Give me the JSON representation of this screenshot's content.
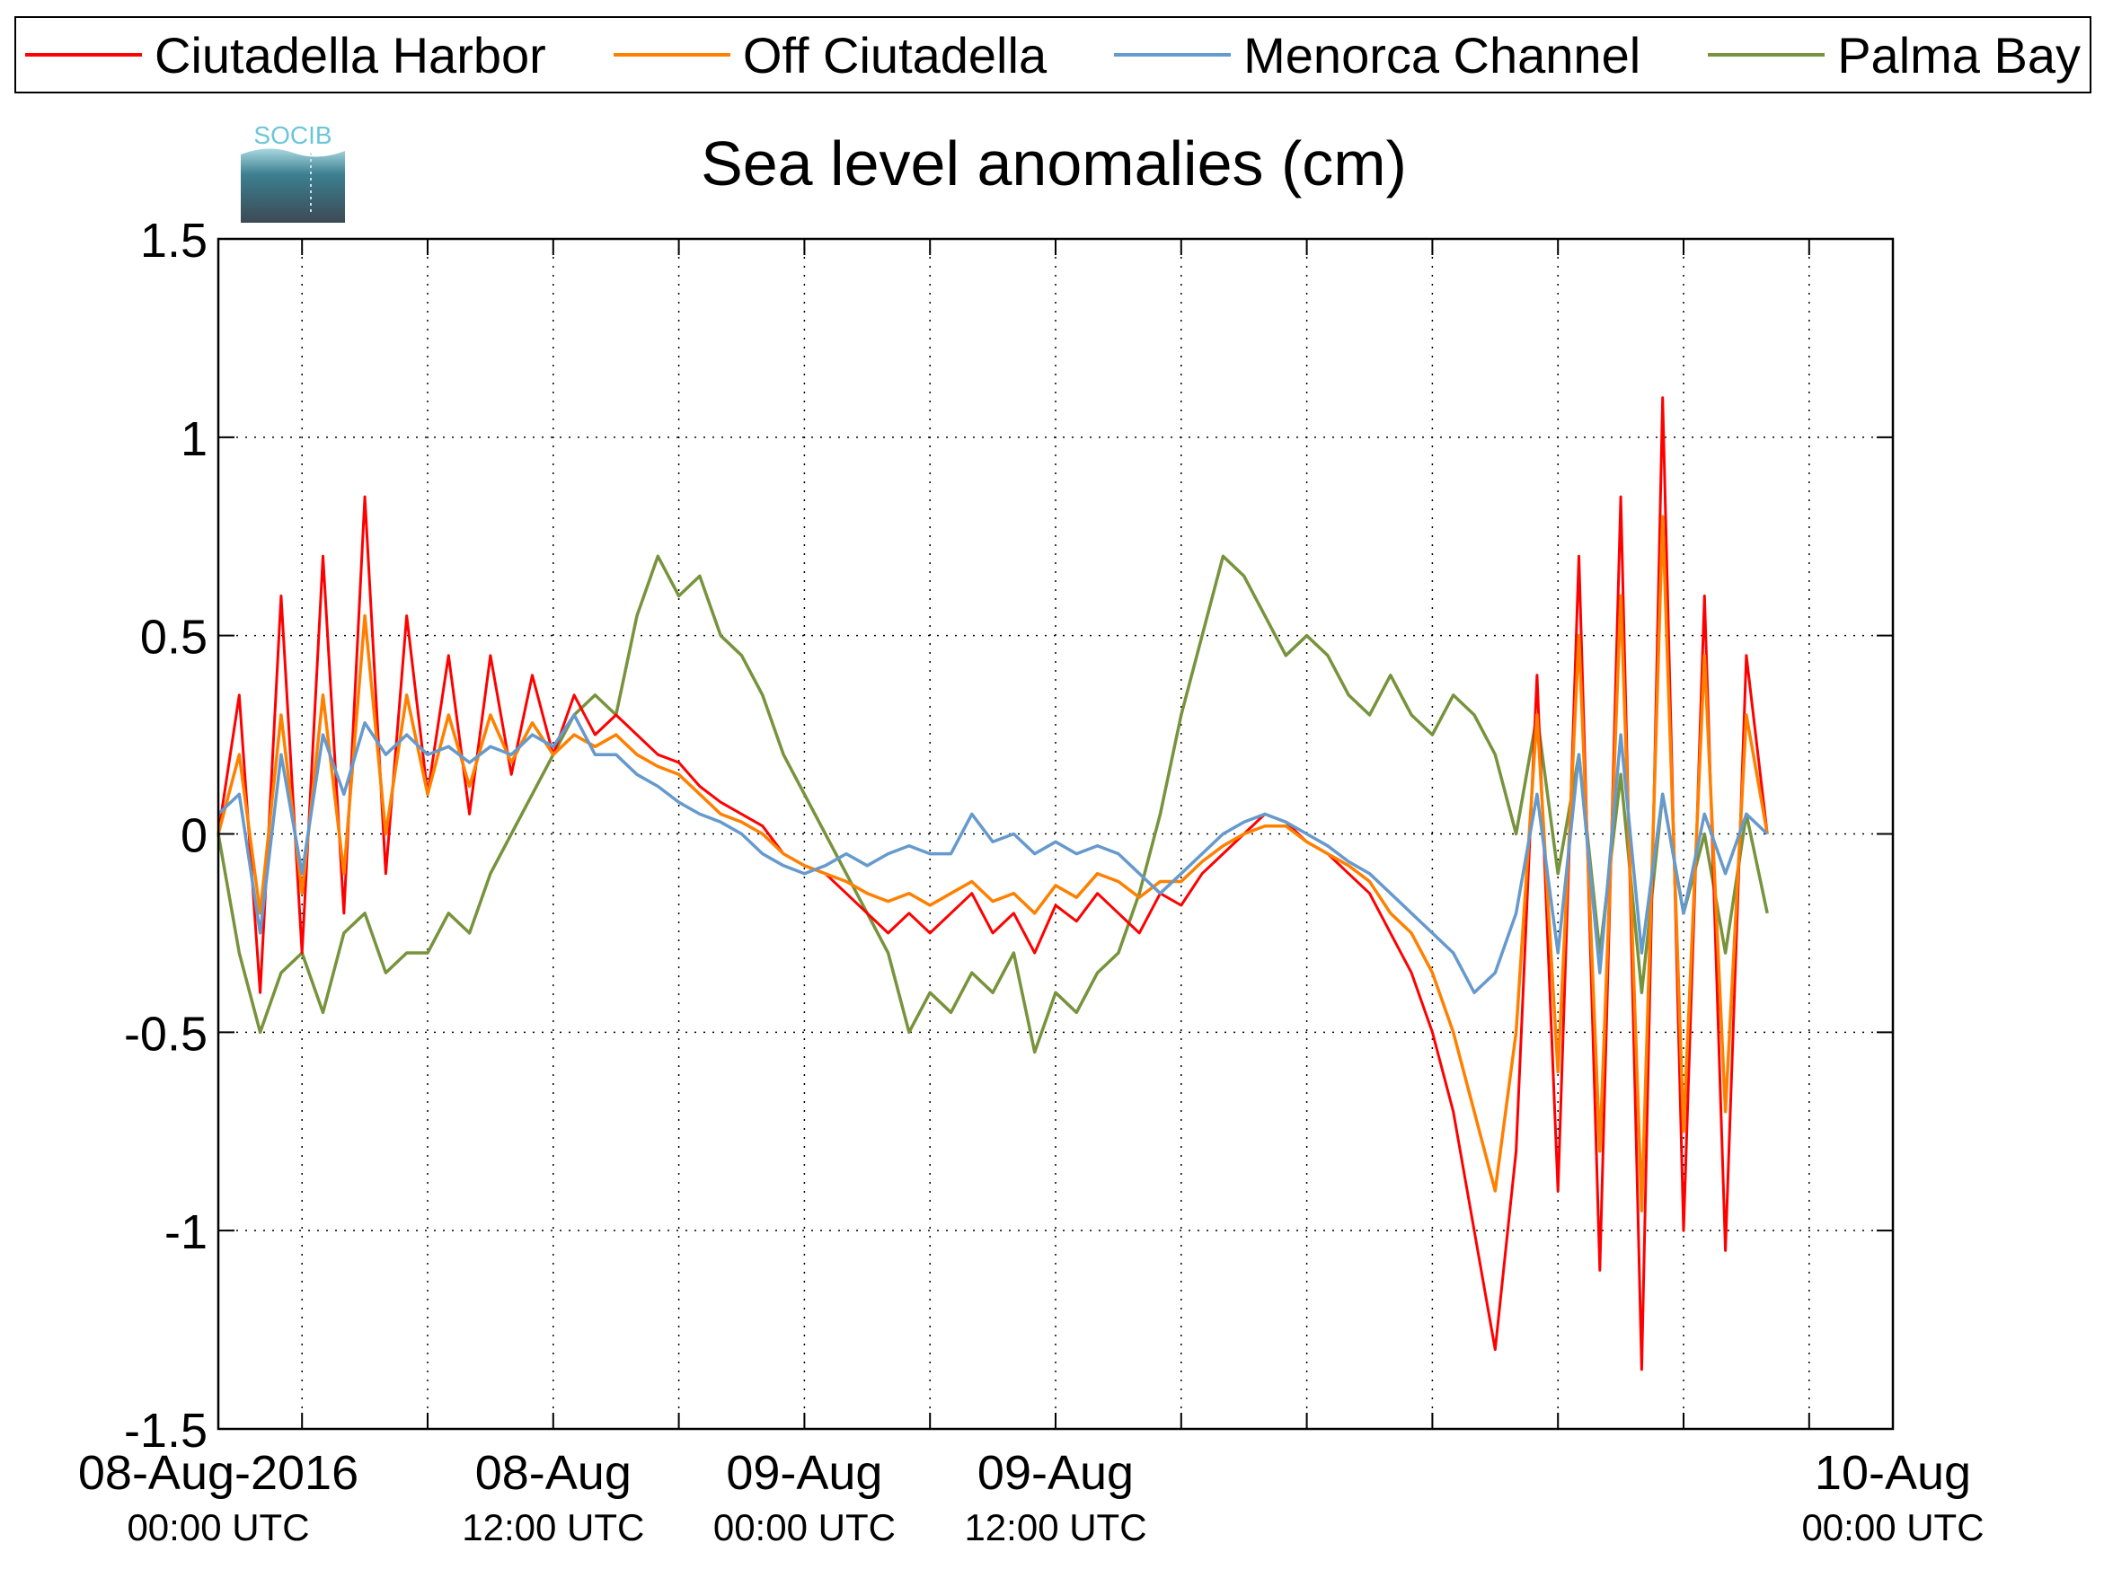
{
  "logo": {
    "text": "SOCIB"
  },
  "chart_data": {
    "type": "line",
    "title": "Sea level anomalies (cm)",
    "xlabel": "",
    "ylabel": "",
    "ylim": [
      -1.5,
      1.5
    ],
    "xlim_hours": [
      -10,
      70
    ],
    "grid": true,
    "legend_position": "top",
    "yticks": [
      -1.5,
      -1,
      -0.5,
      0,
      0.5,
      1,
      1.5
    ],
    "ytick_labels": [
      "-1.5",
      "-1",
      "-0.5",
      "0",
      "0.5",
      "1",
      "1.5"
    ],
    "xticks": [
      {
        "line1": "08-Aug-2016",
        "line2": "00:00 UTC",
        "hour": 0
      },
      {
        "line1": "08-Aug",
        "line2": "12:00 UTC",
        "hour": 12
      },
      {
        "line1": "09-Aug",
        "line2": "00:00 UTC",
        "hour": 24
      },
      {
        "line1": "09-Aug",
        "line2": "12:00 UTC",
        "hour": 36
      },
      {
        "line1": "10-Aug",
        "line2": "00:00 UTC",
        "hour": 48
      }
    ],
    "series": [
      {
        "name": "Ciutadella Harbor",
        "color": "#ff0000",
        "points": [
          [
            -10,
            0.0
          ],
          [
            -9,
            0.35
          ],
          [
            -8,
            -0.4
          ],
          [
            -7,
            0.6
          ],
          [
            -6,
            -0.3
          ],
          [
            -5,
            0.7
          ],
          [
            -4,
            -0.2
          ],
          [
            -3,
            0.85
          ],
          [
            -2,
            -0.1
          ],
          [
            -1,
            0.55
          ],
          [
            0,
            0.1
          ],
          [
            1,
            0.45
          ],
          [
            2,
            0.05
          ],
          [
            3,
            0.45
          ],
          [
            4,
            0.15
          ],
          [
            5,
            0.4
          ],
          [
            6,
            0.2
          ],
          [
            7,
            0.35
          ],
          [
            8,
            0.25
          ],
          [
            9,
            0.3
          ],
          [
            10,
            0.25
          ],
          [
            11,
            0.2
          ],
          [
            12,
            0.18
          ],
          [
            13,
            0.12
          ],
          [
            14,
            0.08
          ],
          [
            15,
            0.05
          ],
          [
            16,
            0.02
          ],
          [
            17,
            -0.05
          ],
          [
            18,
            -0.08
          ],
          [
            19,
            -0.1
          ],
          [
            20,
            -0.15
          ],
          [
            21,
            -0.2
          ],
          [
            22,
            -0.25
          ],
          [
            23,
            -0.2
          ],
          [
            24,
            -0.25
          ],
          [
            25,
            -0.2
          ],
          [
            26,
            -0.15
          ],
          [
            27,
            -0.25
          ],
          [
            28,
            -0.2
          ],
          [
            29,
            -0.3
          ],
          [
            30,
            -0.18
          ],
          [
            31,
            -0.22
          ],
          [
            32,
            -0.15
          ],
          [
            33,
            -0.2
          ],
          [
            34,
            -0.25
          ],
          [
            35,
            -0.15
          ],
          [
            36,
            -0.18
          ],
          [
            37,
            -0.1
          ],
          [
            38,
            -0.05
          ],
          [
            39,
            0.0
          ],
          [
            40,
            0.05
          ],
          [
            41,
            0.03
          ],
          [
            42,
            -0.02
          ],
          [
            43,
            -0.05
          ],
          [
            44,
            -0.1
          ],
          [
            45,
            -0.15
          ],
          [
            46,
            -0.25
          ],
          [
            47,
            -0.35
          ],
          [
            48,
            -0.5
          ],
          [
            49,
            -0.7
          ],
          [
            50,
            -1.0
          ],
          [
            51,
            -1.3
          ],
          [
            52,
            -0.8
          ],
          [
            53,
            0.4
          ],
          [
            54,
            -0.9
          ],
          [
            55,
            0.7
          ],
          [
            56,
            -1.1
          ],
          [
            57,
            0.85
          ],
          [
            58,
            -1.35
          ],
          [
            59,
            1.1
          ],
          [
            60,
            -1.0
          ],
          [
            61,
            0.6
          ],
          [
            62,
            -1.05
          ],
          [
            63,
            0.45
          ],
          [
            64,
            0.0
          ]
        ]
      },
      {
        "name": "Off Ciutadella",
        "color": "#ff8000",
        "points": [
          [
            -10,
            0.0
          ],
          [
            -9,
            0.2
          ],
          [
            -8,
            -0.2
          ],
          [
            -7,
            0.3
          ],
          [
            -6,
            -0.15
          ],
          [
            -5,
            0.35
          ],
          [
            -4,
            -0.1
          ],
          [
            -3,
            0.55
          ],
          [
            -2,
            0.0
          ],
          [
            -1,
            0.35
          ],
          [
            0,
            0.1
          ],
          [
            1,
            0.3
          ],
          [
            2,
            0.12
          ],
          [
            3,
            0.3
          ],
          [
            4,
            0.18
          ],
          [
            5,
            0.28
          ],
          [
            6,
            0.2
          ],
          [
            7,
            0.25
          ],
          [
            8,
            0.22
          ],
          [
            9,
            0.25
          ],
          [
            10,
            0.2
          ],
          [
            11,
            0.17
          ],
          [
            12,
            0.15
          ],
          [
            13,
            0.1
          ],
          [
            14,
            0.05
          ],
          [
            15,
            0.03
          ],
          [
            16,
            0.0
          ],
          [
            17,
            -0.05
          ],
          [
            18,
            -0.08
          ],
          [
            19,
            -0.1
          ],
          [
            20,
            -0.12
          ],
          [
            21,
            -0.15
          ],
          [
            22,
            -0.17
          ],
          [
            23,
            -0.15
          ],
          [
            24,
            -0.18
          ],
          [
            25,
            -0.15
          ],
          [
            26,
            -0.12
          ],
          [
            27,
            -0.17
          ],
          [
            28,
            -0.15
          ],
          [
            29,
            -0.2
          ],
          [
            30,
            -0.13
          ],
          [
            31,
            -0.16
          ],
          [
            32,
            -0.1
          ],
          [
            33,
            -0.12
          ],
          [
            34,
            -0.16
          ],
          [
            35,
            -0.12
          ],
          [
            36,
            -0.12
          ],
          [
            37,
            -0.07
          ],
          [
            38,
            -0.03
          ],
          [
            39,
            0.0
          ],
          [
            40,
            0.02
          ],
          [
            41,
            0.02
          ],
          [
            42,
            -0.02
          ],
          [
            43,
            -0.05
          ],
          [
            44,
            -0.08
          ],
          [
            45,
            -0.12
          ],
          [
            46,
            -0.2
          ],
          [
            47,
            -0.25
          ],
          [
            48,
            -0.35
          ],
          [
            49,
            -0.5
          ],
          [
            50,
            -0.7
          ],
          [
            51,
            -0.9
          ],
          [
            52,
            -0.5
          ],
          [
            53,
            0.3
          ],
          [
            54,
            -0.6
          ],
          [
            55,
            0.5
          ],
          [
            56,
            -0.8
          ],
          [
            57,
            0.6
          ],
          [
            58,
            -0.95
          ],
          [
            59,
            0.8
          ],
          [
            60,
            -0.75
          ],
          [
            61,
            0.45
          ],
          [
            62,
            -0.7
          ],
          [
            63,
            0.3
          ],
          [
            64,
            0.0
          ]
        ]
      },
      {
        "name": "Menorca Channel",
        "color": "#6699cc",
        "points": [
          [
            -10,
            0.05
          ],
          [
            -9,
            0.1
          ],
          [
            -8,
            -0.25
          ],
          [
            -7,
            0.2
          ],
          [
            -6,
            -0.1
          ],
          [
            -5,
            0.25
          ],
          [
            -4,
            0.1
          ],
          [
            -3,
            0.28
          ],
          [
            -2,
            0.2
          ],
          [
            -1,
            0.25
          ],
          [
            0,
            0.2
          ],
          [
            1,
            0.22
          ],
          [
            2,
            0.18
          ],
          [
            3,
            0.22
          ],
          [
            4,
            0.2
          ],
          [
            5,
            0.25
          ],
          [
            6,
            0.22
          ],
          [
            7,
            0.3
          ],
          [
            8,
            0.2
          ],
          [
            9,
            0.2
          ],
          [
            10,
            0.15
          ],
          [
            11,
            0.12
          ],
          [
            12,
            0.08
          ],
          [
            13,
            0.05
          ],
          [
            14,
            0.03
          ],
          [
            15,
            0.0
          ],
          [
            16,
            -0.05
          ],
          [
            17,
            -0.08
          ],
          [
            18,
            -0.1
          ],
          [
            19,
            -0.08
          ],
          [
            20,
            -0.05
          ],
          [
            21,
            -0.08
          ],
          [
            22,
            -0.05
          ],
          [
            23,
            -0.03
          ],
          [
            24,
            -0.05
          ],
          [
            25,
            -0.05
          ],
          [
            26,
            0.05
          ],
          [
            27,
            -0.02
          ],
          [
            28,
            0.0
          ],
          [
            29,
            -0.05
          ],
          [
            30,
            -0.02
          ],
          [
            31,
            -0.05
          ],
          [
            32,
            -0.03
          ],
          [
            33,
            -0.05
          ],
          [
            34,
            -0.1
          ],
          [
            35,
            -0.15
          ],
          [
            36,
            -0.1
          ],
          [
            37,
            -0.05
          ],
          [
            38,
            0.0
          ],
          [
            39,
            0.03
          ],
          [
            40,
            0.05
          ],
          [
            41,
            0.03
          ],
          [
            42,
            0.0
          ],
          [
            43,
            -0.03
          ],
          [
            44,
            -0.07
          ],
          [
            45,
            -0.1
          ],
          [
            46,
            -0.15
          ],
          [
            47,
            -0.2
          ],
          [
            48,
            -0.25
          ],
          [
            49,
            -0.3
          ],
          [
            50,
            -0.4
          ],
          [
            51,
            -0.35
          ],
          [
            52,
            -0.2
          ],
          [
            53,
            0.1
          ],
          [
            54,
            -0.3
          ],
          [
            55,
            0.2
          ],
          [
            56,
            -0.35
          ],
          [
            57,
            0.25
          ],
          [
            58,
            -0.3
          ],
          [
            59,
            0.1
          ],
          [
            60,
            -0.2
          ],
          [
            61,
            0.05
          ],
          [
            62,
            -0.1
          ],
          [
            63,
            0.05
          ],
          [
            64,
            0.0
          ]
        ]
      },
      {
        "name": "Palma Bay",
        "color": "#77933c",
        "points": [
          [
            -10,
            0.0
          ],
          [
            -9,
            -0.3
          ],
          [
            -8,
            -0.5
          ],
          [
            -7,
            -0.35
          ],
          [
            -6,
            -0.3
          ],
          [
            -5,
            -0.45
          ],
          [
            -4,
            -0.25
          ],
          [
            -3,
            -0.2
          ],
          [
            -2,
            -0.35
          ],
          [
            -1,
            -0.3
          ],
          [
            0,
            -0.3
          ],
          [
            1,
            -0.2
          ],
          [
            2,
            -0.25
          ],
          [
            3,
            -0.1
          ],
          [
            4,
            0.0
          ],
          [
            5,
            0.1
          ],
          [
            6,
            0.2
          ],
          [
            7,
            0.3
          ],
          [
            8,
            0.35
          ],
          [
            9,
            0.3
          ],
          [
            10,
            0.55
          ],
          [
            11,
            0.7
          ],
          [
            12,
            0.6
          ],
          [
            13,
            0.65
          ],
          [
            14,
            0.5
          ],
          [
            15,
            0.45
          ],
          [
            16,
            0.35
          ],
          [
            17,
            0.2
          ],
          [
            18,
            0.1
          ],
          [
            19,
            0.0
          ],
          [
            20,
            -0.1
          ],
          [
            21,
            -0.2
          ],
          [
            22,
            -0.3
          ],
          [
            23,
            -0.5
          ],
          [
            24,
            -0.4
          ],
          [
            25,
            -0.45
          ],
          [
            26,
            -0.35
          ],
          [
            27,
            -0.4
          ],
          [
            28,
            -0.3
          ],
          [
            29,
            -0.55
          ],
          [
            30,
            -0.4
          ],
          [
            31,
            -0.45
          ],
          [
            32,
            -0.35
          ],
          [
            33,
            -0.3
          ],
          [
            34,
            -0.15
          ],
          [
            35,
            0.05
          ],
          [
            36,
            0.3
          ],
          [
            37,
            0.5
          ],
          [
            38,
            0.7
          ],
          [
            39,
            0.65
          ],
          [
            40,
            0.55
          ],
          [
            41,
            0.45
          ],
          [
            42,
            0.5
          ],
          [
            43,
            0.45
          ],
          [
            44,
            0.35
          ],
          [
            45,
            0.3
          ],
          [
            46,
            0.4
          ],
          [
            47,
            0.3
          ],
          [
            48,
            0.25
          ],
          [
            49,
            0.35
          ],
          [
            50,
            0.3
          ],
          [
            51,
            0.2
          ],
          [
            52,
            0.0
          ],
          [
            53,
            0.3
          ],
          [
            54,
            -0.1
          ],
          [
            55,
            0.2
          ],
          [
            56,
            -0.3
          ],
          [
            57,
            0.15
          ],
          [
            58,
            -0.4
          ],
          [
            59,
            0.1
          ],
          [
            60,
            -0.2
          ],
          [
            61,
            0.0
          ],
          [
            62,
            -0.3
          ],
          [
            63,
            0.05
          ],
          [
            64,
            -0.2
          ]
        ]
      }
    ]
  }
}
